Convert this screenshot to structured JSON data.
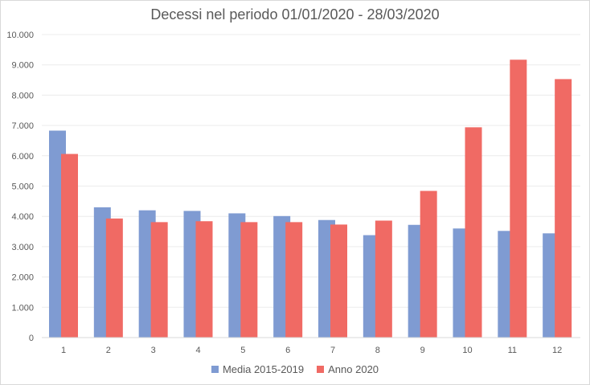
{
  "chart_data": {
    "type": "bar",
    "title": "Decessi nel periodo 01/01/2020 - 28/03/2020",
    "categories": [
      "1",
      "2",
      "3",
      "4",
      "5",
      "6",
      "7",
      "8",
      "9",
      "10",
      "11",
      "12"
    ],
    "series": [
      {
        "name": "Media 2015-2019",
        "color": "#7f9bd2",
        "values": [
          6830,
          4300,
          4200,
          4180,
          4100,
          4010,
          3880,
          3380,
          3720,
          3600,
          3520,
          3440
        ]
      },
      {
        "name": "Anno 2020",
        "color": "#f06a64",
        "values": [
          6060,
          3930,
          3810,
          3840,
          3810,
          3810,
          3730,
          3860,
          4840,
          6940,
          9170,
          8530
        ]
      }
    ],
    "ylim": [
      0,
      10000
    ],
    "yticks": [
      "0",
      "1.000",
      "2.000",
      "3.000",
      "4.000",
      "5.000",
      "6.000",
      "7.000",
      "8.000",
      "9.000",
      "10.000"
    ],
    "grid": true,
    "legend_position": "bottom"
  }
}
